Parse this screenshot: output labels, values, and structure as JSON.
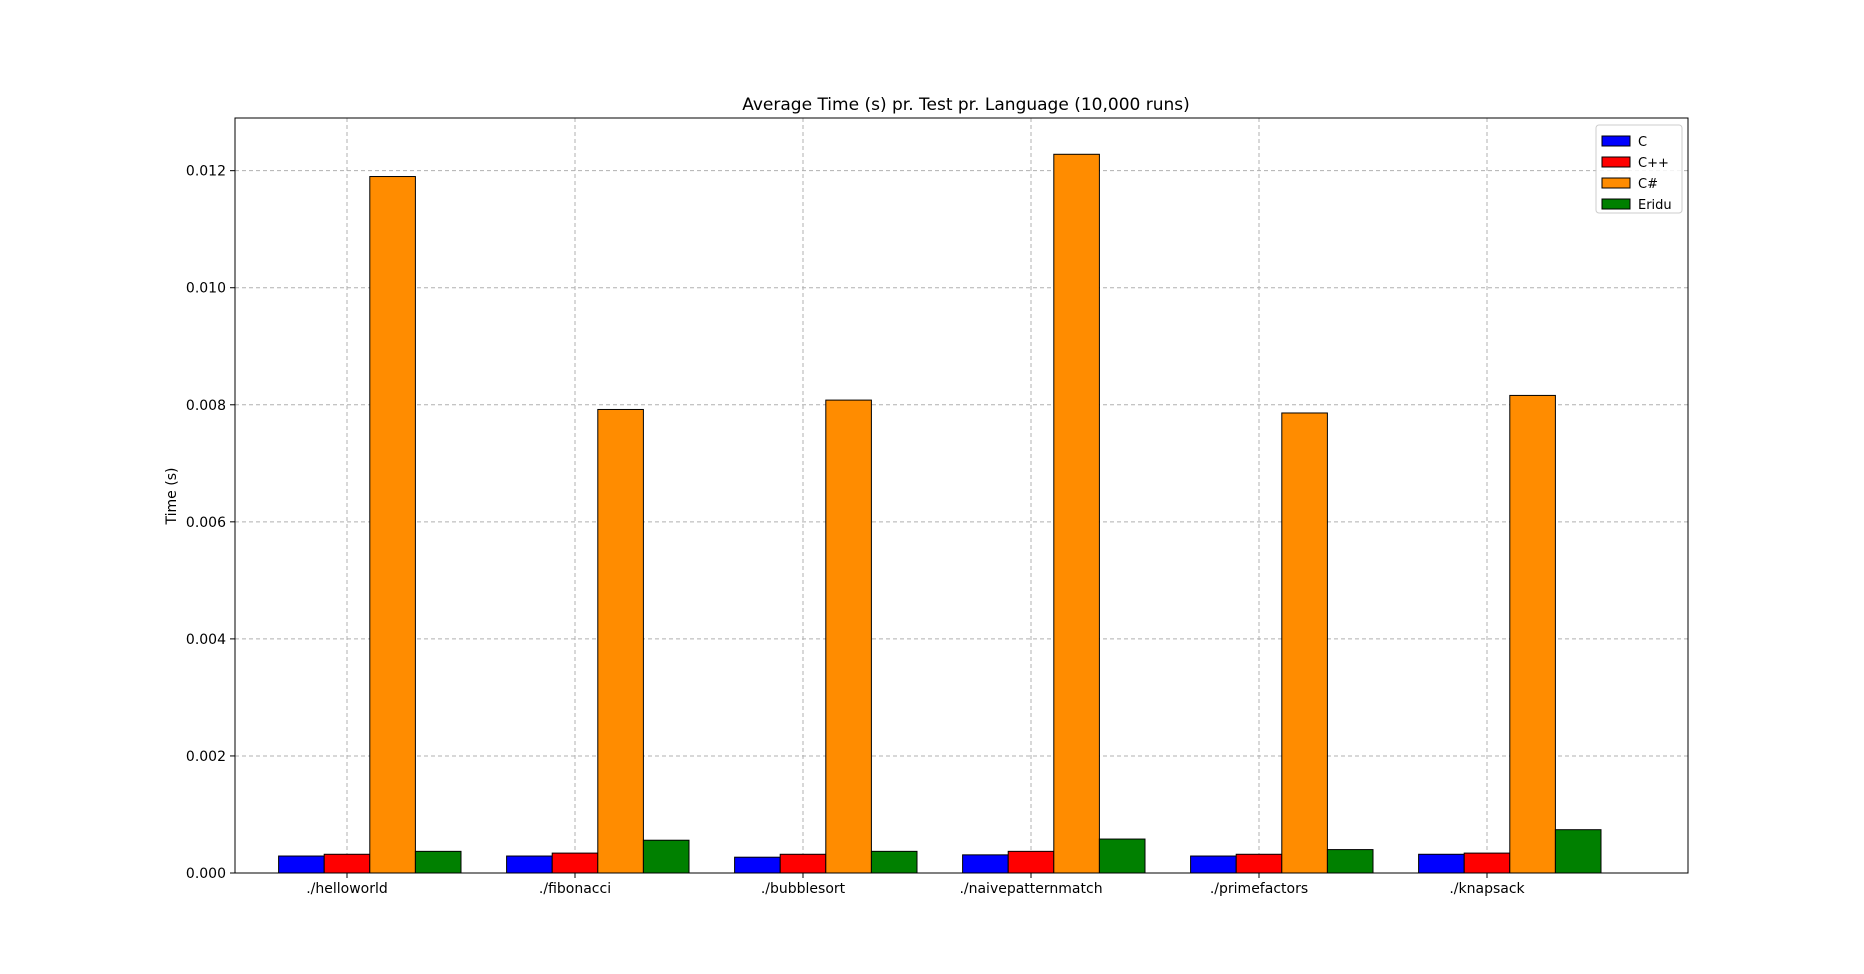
{
  "chart_data": {
    "type": "bar",
    "title": "Average Time (s) pr. Test pr. Language (10,000 runs)",
    "xlabel": "",
    "ylabel": "Time (s)",
    "ylim": [
      0,
      0.0129
    ],
    "yticks": [
      0.0,
      0.002,
      0.004,
      0.006,
      0.008,
      0.01,
      0.012
    ],
    "ytick_labels": [
      "0.000",
      "0.002",
      "0.004",
      "0.006",
      "0.008",
      "0.010",
      "0.012"
    ],
    "categories": [
      "./helloworld",
      "./fibonacci",
      "./bubblesort",
      "./naivepatternmatch",
      "./primefactors",
      "./knapsack"
    ],
    "series": [
      {
        "name": "C",
        "color": "#0000ff",
        "values": [
          0.00029,
          0.00029,
          0.00027,
          0.00031,
          0.00029,
          0.00032
        ]
      },
      {
        "name": "C++",
        "color": "#ff0000",
        "values": [
          0.00032,
          0.00034,
          0.00032,
          0.00037,
          0.00032,
          0.00034
        ]
      },
      {
        "name": "C#",
        "color": "#ff8c00",
        "values": [
          0.0119,
          0.00792,
          0.00808,
          0.01228,
          0.00786,
          0.00816
        ]
      },
      {
        "name": "Eridu",
        "color": "#008000",
        "values": [
          0.00037,
          0.00056,
          0.00037,
          0.00058,
          0.0004,
          0.00074
        ]
      }
    ],
    "grid": true,
    "legend_position": "top-right"
  }
}
